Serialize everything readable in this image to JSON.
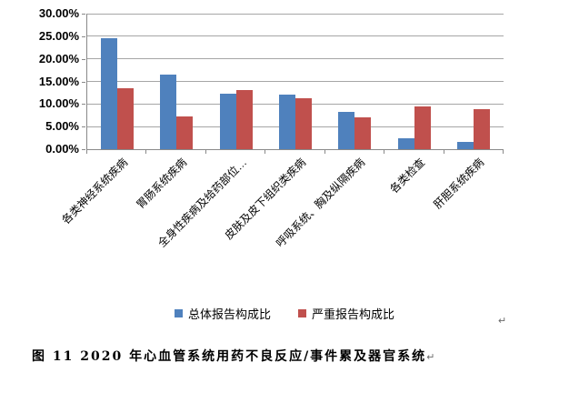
{
  "page": {
    "background": "#ffffff",
    "stray_return_mark": "↵"
  },
  "chart_data": {
    "type": "bar",
    "title": "",
    "categories": [
      "各类神经系统疾病",
      "胃肠系统疾病",
      "全身性疾病及给药部位…",
      "皮肤及皮下组织类疾病",
      "呼吸系统、胸及纵隔疾病",
      "各类检查",
      "肝胆系统疾病"
    ],
    "series": [
      {
        "name": "总体报告构成比",
        "color": "#4F81BD",
        "values": [
          24.5,
          16.5,
          12.2,
          12.0,
          8.3,
          2.4,
          1.6
        ]
      },
      {
        "name": "严重报告构成比",
        "color": "#C0504D",
        "values": [
          13.5,
          7.2,
          13.0,
          11.2,
          7.0,
          9.5,
          8.9
        ]
      }
    ],
    "xlabel": "",
    "ylabel": "",
    "ylim": [
      0,
      30
    ],
    "ytick_step": 5,
    "ytick_labels": [
      "0.00%",
      "5.00%",
      "10.00%",
      "15.00%",
      "20.00%",
      "25.00%",
      "30.00%"
    ],
    "grid": true,
    "gridline_color": "#a6a6a6",
    "axis_color": "#898989",
    "legend_position": "bottom"
  },
  "legend": {
    "items": [
      {
        "label": "总体报告构成比",
        "color": "#4F81BD"
      },
      {
        "label": "严重报告构成比",
        "color": "#C0504D"
      }
    ]
  },
  "caption": {
    "text": "图 11  2020 年心血管系统用药不良反应/事件累及器官系统",
    "return_mark": "↵"
  }
}
